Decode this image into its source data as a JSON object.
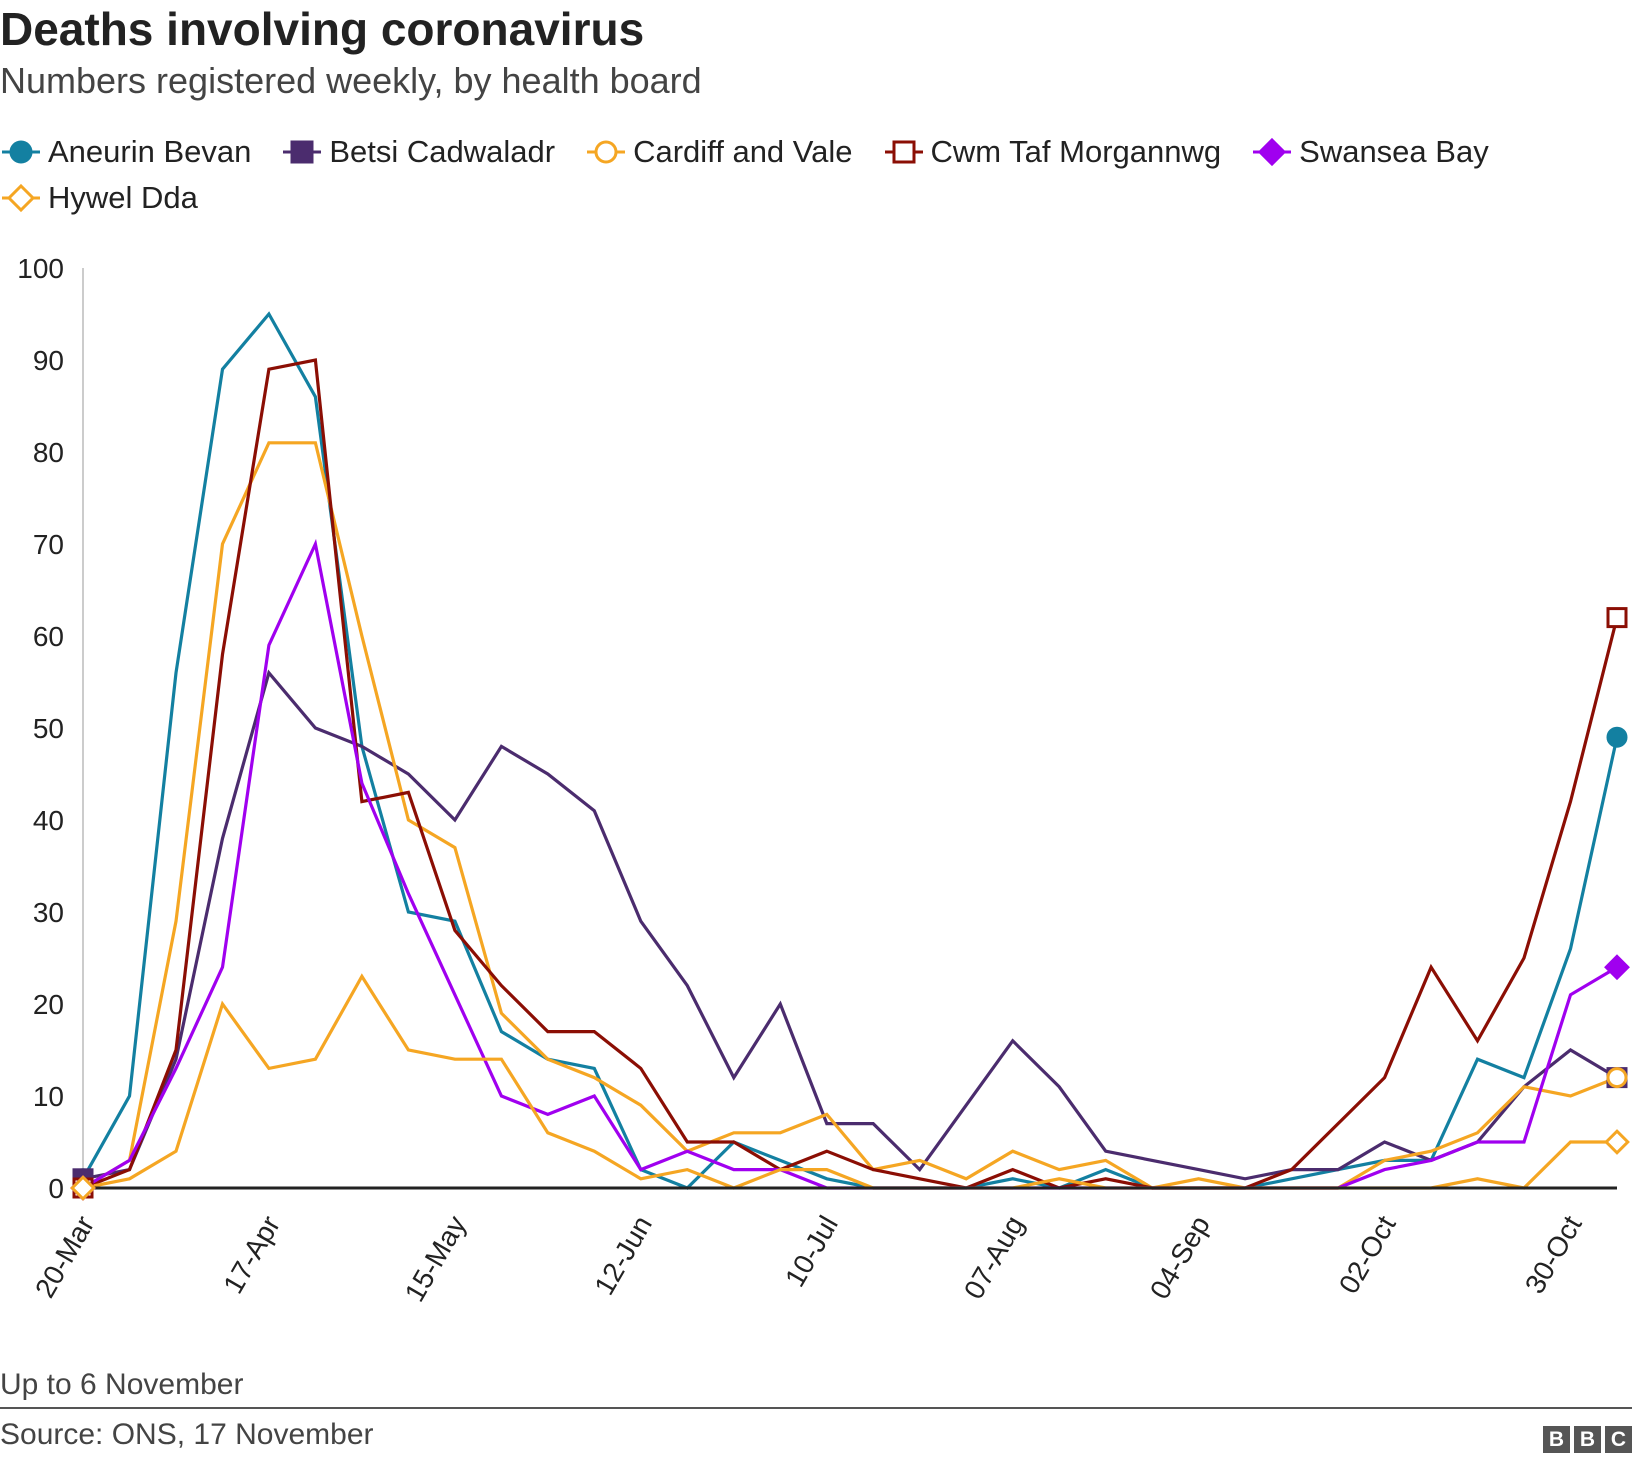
{
  "chart_data": {
    "type": "line",
    "title": "Deaths involving coronavirus",
    "subtitle": "Numbers registered weekly, by health board",
    "footnote": "Up to 6 November",
    "source": "Source: ONS, 17 November",
    "logo_letters": [
      "B",
      "B",
      "C"
    ],
    "ylim": [
      0,
      100
    ],
    "yticks": [
      0,
      10,
      20,
      30,
      40,
      50,
      60,
      70,
      80,
      90,
      100
    ],
    "xlabel": "",
    "ylabel": "",
    "grid": false,
    "legend_position": "top",
    "x": [
      "20-Mar",
      "27-Mar",
      "03-Apr",
      "10-Apr",
      "17-Apr",
      "24-Apr",
      "01-May",
      "08-May",
      "15-May",
      "22-May",
      "29-May",
      "05-Jun",
      "12-Jun",
      "19-Jun",
      "26-Jun",
      "03-Jul",
      "10-Jul",
      "17-Jul",
      "24-Jul",
      "31-Jul",
      "07-Aug",
      "14-Aug",
      "21-Aug",
      "28-Aug",
      "04-Sep",
      "11-Sep",
      "18-Sep",
      "25-Sep",
      "02-Oct",
      "09-Oct",
      "16-Oct",
      "23-Oct",
      "30-Oct",
      "06-Nov"
    ],
    "xtick_labels": [
      "20-Mar",
      "17-Apr",
      "15-May",
      "12-Jun",
      "10-Jul",
      "07-Aug",
      "04-Sep",
      "02-Oct",
      "30-Oct"
    ],
    "series": [
      {
        "name": "Aneurin Bevan",
        "color": "#1380a1",
        "marker": "circle-filled",
        "values": [
          1,
          10,
          56,
          89,
          95,
          86,
          48,
          30,
          29,
          17,
          14,
          13,
          2,
          0,
          5,
          3,
          1,
          0,
          0,
          0,
          1,
          0,
          2,
          0,
          0,
          0,
          1,
          2,
          3,
          3,
          14,
          12,
          26,
          49
        ]
      },
      {
        "name": "Betsi Cadwaladr",
        "color": "#4b2c6e",
        "marker": "square-filled",
        "values": [
          1,
          2,
          14,
          38,
          56,
          50,
          48,
          45,
          40,
          48,
          45,
          41,
          29,
          22,
          12,
          20,
          7,
          7,
          2,
          9,
          16,
          11,
          4,
          3,
          2,
          1,
          2,
          2,
          5,
          3,
          5,
          11,
          15,
          12
        ]
      },
      {
        "name": "Cardiff and Vale",
        "color": "#f5a623",
        "marker": "circle-open",
        "values": [
          0,
          3,
          29,
          70,
          81,
          81,
          60,
          40,
          37,
          19,
          14,
          12,
          9,
          4,
          6,
          6,
          8,
          2,
          3,
          1,
          4,
          2,
          3,
          0,
          1,
          0,
          0,
          0,
          3,
          4,
          6,
          11,
          10,
          12
        ]
      },
      {
        "name": "Cwm Taf Morgannwg",
        "color": "#8b0e04",
        "marker": "square-open",
        "values": [
          0,
          2,
          15,
          58,
          89,
          90,
          42,
          43,
          28,
          22,
          17,
          17,
          13,
          5,
          5,
          2,
          4,
          2,
          1,
          0,
          2,
          0,
          1,
          0,
          0,
          0,
          2,
          7,
          12,
          24,
          16,
          25,
          42,
          62
        ]
      },
      {
        "name": "Swansea Bay",
        "color": "#a000ef",
        "marker": "diamond-filled",
        "values": [
          0,
          3,
          13,
          24,
          59,
          70,
          44,
          32,
          21,
          10,
          8,
          10,
          2,
          4,
          2,
          2,
          0,
          0,
          0,
          0,
          0,
          0,
          0,
          0,
          0,
          0,
          0,
          0,
          2,
          3,
          5,
          5,
          21,
          24
        ]
      },
      {
        "name": "Hywel Dda",
        "color": "#f5a623",
        "marker": "diamond-open",
        "values": [
          0,
          1,
          4,
          20,
          13,
          14,
          23,
          15,
          14,
          14,
          6,
          4,
          1,
          2,
          0,
          2,
          2,
          0,
          0,
          0,
          0,
          1,
          0,
          0,
          0,
          0,
          0,
          0,
          0,
          0,
          1,
          0,
          5,
          5
        ]
      }
    ]
  }
}
